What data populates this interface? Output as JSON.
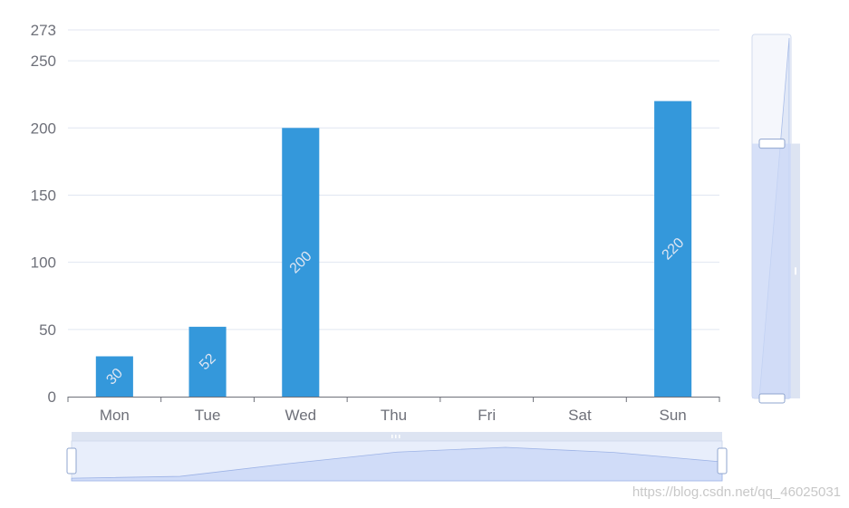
{
  "chart_data": {
    "type": "bar",
    "categories": [
      "Mon",
      "Tue",
      "Wed",
      "Thu",
      "Fri",
      "Sat",
      "Sun"
    ],
    "values": [
      30,
      52,
      200,
      0,
      0,
      0,
      220
    ],
    "ylim": [
      0,
      273
    ],
    "yticks": [
      "0",
      "50",
      "100",
      "150",
      "200",
      "250",
      "273"
    ],
    "bar_labels": [
      "30",
      "52",
      "200",
      "",
      "",
      "",
      "220"
    ],
    "overview_values": [
      30,
      52,
      200,
      334,
      390,
      330,
      220
    ],
    "grid": true,
    "bar_color": "#3498db",
    "zoom": {
      "horizontal": {
        "start": 0,
        "end": 100
      },
      "vertical": {
        "start": 0,
        "end": 70
      }
    }
  },
  "watermark": "https://blog.csdn.net/qq_46025031"
}
